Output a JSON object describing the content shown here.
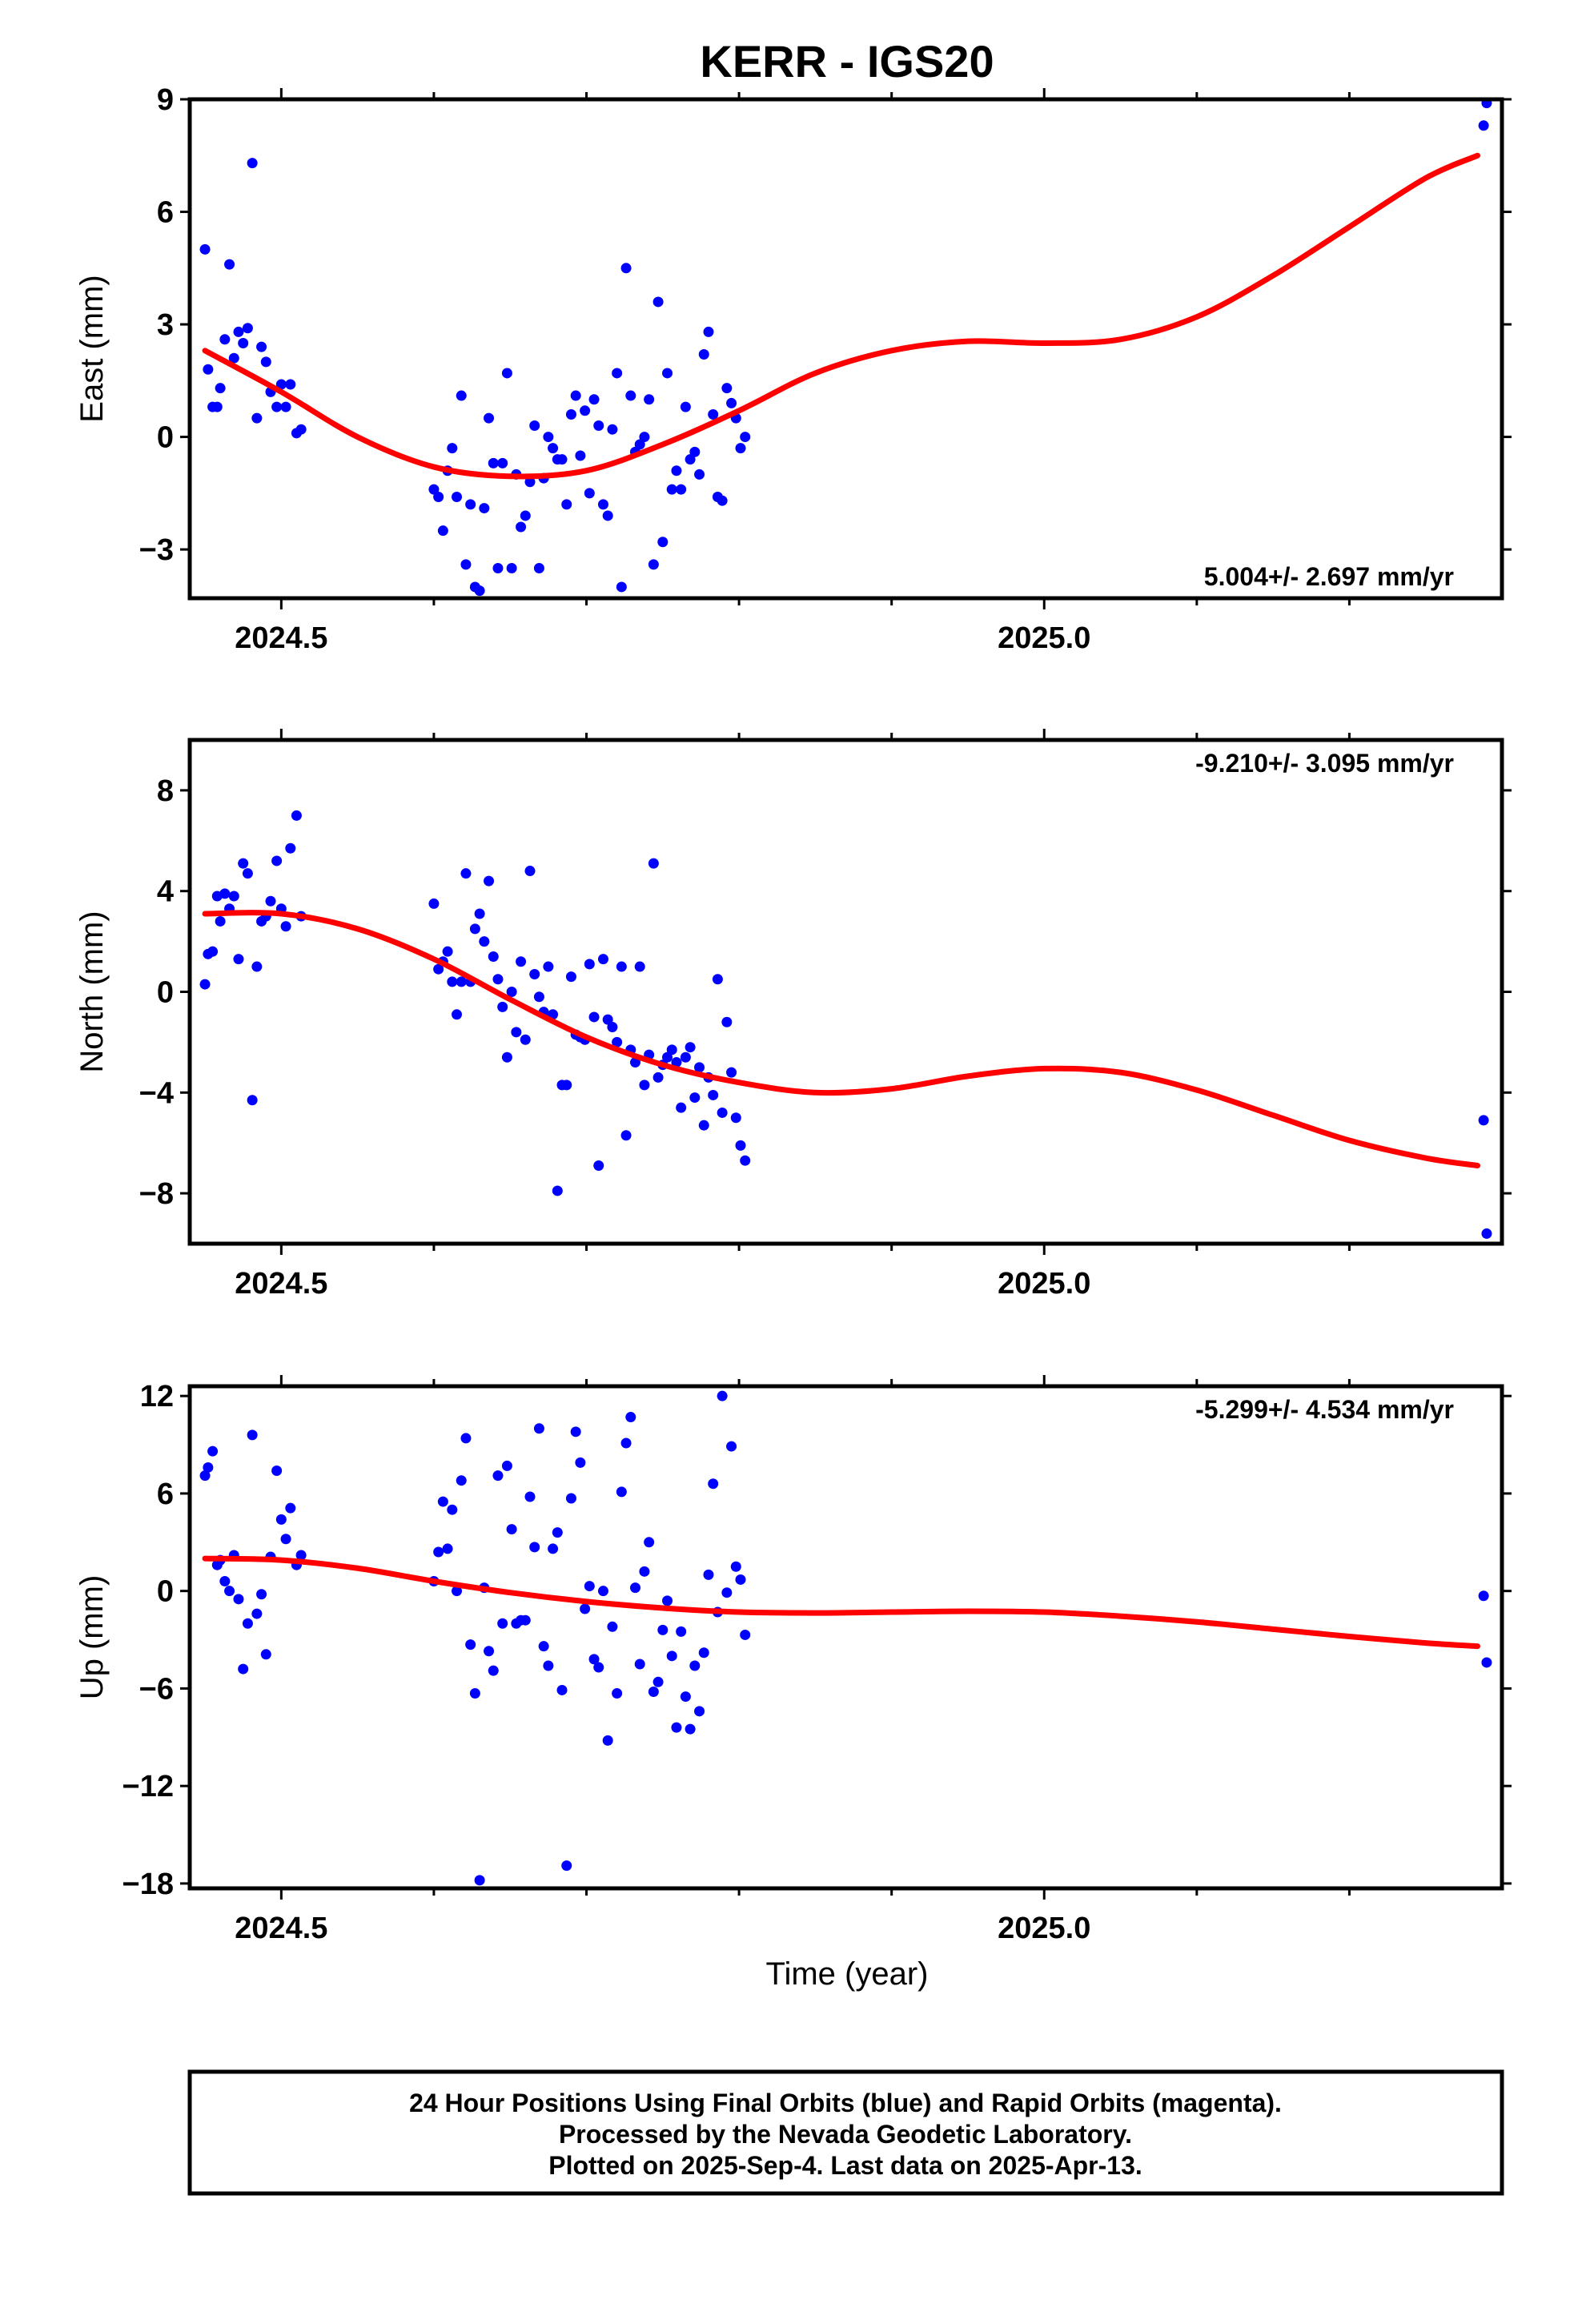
{
  "title": "KERR - IGS20",
  "xlabel": "Time (year)",
  "footer": {
    "line1": "24 Hour Positions Using Final Orbits (blue) and Rapid Orbits (magenta).",
    "line2": "Processed by the Nevada Geodetic Laboratory.",
    "line3": "Plotted on 2025-Sep-4. Last data on 2025-Apr-13."
  },
  "colors": {
    "points": "#0000ff",
    "fit": "#ff0000",
    "axes": "#000000"
  },
  "chart_data": [
    {
      "type": "scatter",
      "ylabel": "East (mm)",
      "rate_text": "5.004+/- 2.697 mm/yr",
      "rate_position": "bottom-right",
      "xlim": [
        2024.44,
        2025.3
      ],
      "ylim": [
        -4.3,
        9.0
      ],
      "xticks": [
        2024.5,
        2025.0
      ],
      "xticklabels": [
        "2024.5",
        "2025.0"
      ],
      "xminor": [
        2024.6,
        2024.7,
        2024.8,
        2024.9,
        2025.1,
        2025.2
      ],
      "yticks": [
        -3,
        0,
        3,
        6,
        9
      ],
      "yticklabels": [
        "−3",
        "0",
        "3",
        "6",
        "9"
      ],
      "points_x": [
        2024.45,
        2024.452,
        2024.455,
        2024.458,
        2024.46,
        2024.463,
        2024.466,
        2024.469,
        2024.472,
        2024.475,
        2024.478,
        2024.481,
        2024.484,
        2024.487,
        2024.49,
        2024.493,
        2024.497,
        2024.5,
        2024.503,
        2024.506,
        2024.51,
        2024.513,
        2024.6,
        2024.603,
        2024.606,
        2024.609,
        2024.612,
        2024.615,
        2024.618,
        2024.621,
        2024.624,
        2024.627,
        2024.63,
        2024.633,
        2024.636,
        2024.639,
        2024.642,
        2024.645,
        2024.648,
        2024.651,
        2024.654,
        2024.657,
        2024.66,
        2024.663,
        2024.666,
        2024.669,
        2024.672,
        2024.675,
        2024.678,
        2024.681,
        2024.684,
        2024.687,
        2024.69,
        2024.693,
        2024.696,
        2024.699,
        2024.702,
        2024.705,
        2024.708,
        2024.711,
        2024.714,
        2024.717,
        2024.72,
        2024.723,
        2024.726,
        2024.729,
        2024.732,
        2024.735,
        2024.738,
        2024.741,
        2024.744,
        2024.747,
        2024.75,
        2024.753,
        2024.756,
        2024.759,
        2024.762,
        2024.765,
        2024.768,
        2024.771,
        2024.774,
        2024.777,
        2024.78,
        2024.783,
        2024.786,
        2024.789,
        2024.792,
        2024.795,
        2024.798,
        2024.801,
        2024.804,
        2025.288,
        2025.29
      ],
      "points_y": [
        5.0,
        1.8,
        0.8,
        0.8,
        1.3,
        2.6,
        4.6,
        2.1,
        2.8,
        2.5,
        2.9,
        7.3,
        0.5,
        2.4,
        2.0,
        1.2,
        0.8,
        1.4,
        0.8,
        1.4,
        0.1,
        0.2,
        -1.4,
        -1.6,
        -2.5,
        -0.9,
        -0.3,
        -1.6,
        1.1,
        -3.4,
        -1.8,
        -4.0,
        -4.1,
        -1.9,
        0.5,
        -0.7,
        -3.5,
        -0.7,
        1.7,
        -3.5,
        -1.0,
        -2.4,
        -2.1,
        -1.2,
        0.3,
        -3.5,
        -1.1,
        0.0,
        -0.3,
        -0.6,
        -0.6,
        -1.8,
        0.6,
        1.1,
        -0.5,
        0.7,
        -1.5,
        1.0,
        0.3,
        -1.8,
        -2.1,
        0.2,
        1.7,
        -4.0,
        4.5,
        1.1,
        -0.4,
        -0.2,
        0.0,
        1.0,
        -3.4,
        3.6,
        -2.8,
        1.7,
        -1.4,
        -0.9,
        -1.4,
        0.8,
        -0.6,
        -0.4,
        -1.0,
        2.2,
        2.8,
        0.6,
        -1.6,
        -1.7,
        1.3,
        0.9,
        0.5,
        -0.3,
        0.0,
        8.3,
        8.9
      ],
      "fit_x": [
        2024.45,
        2024.5,
        2024.55,
        2024.6,
        2024.65,
        2024.7,
        2024.75,
        2024.8,
        2024.85,
        2024.9,
        2024.95,
        2025.0,
        2025.05,
        2025.1,
        2025.15,
        2025.2,
        2025.25,
        2025.284
      ],
      "fit_y": [
        2.3,
        1.2,
        0.0,
        -0.8,
        -1.05,
        -0.9,
        -0.2,
        0.7,
        1.7,
        2.3,
        2.55,
        2.5,
        2.6,
        3.2,
        4.3,
        5.6,
        6.9,
        7.5
      ]
    },
    {
      "type": "scatter",
      "ylabel": "North (mm)",
      "rate_text": "-9.210+/- 3.095 mm/yr",
      "rate_position": "top-right",
      "xlim": [
        2024.44,
        2025.3
      ],
      "ylim": [
        -10.0,
        10.0
      ],
      "xticks": [
        2024.5,
        2025.0
      ],
      "xticklabels": [
        "2024.5",
        "2025.0"
      ],
      "xminor": [
        2024.6,
        2024.7,
        2024.8,
        2024.9,
        2025.1,
        2025.2
      ],
      "yticks": [
        -8,
        -4,
        0,
        4,
        8
      ],
      "yticklabels": [
        "−8",
        "−4",
        "0",
        "4",
        "8"
      ],
      "points_x": [
        2024.45,
        2024.452,
        2024.455,
        2024.458,
        2024.46,
        2024.463,
        2024.466,
        2024.469,
        2024.472,
        2024.475,
        2024.478,
        2024.481,
        2024.484,
        2024.487,
        2024.49,
        2024.493,
        2024.497,
        2024.5,
        2024.503,
        2024.506,
        2024.51,
        2024.513,
        2024.6,
        2024.603,
        2024.606,
        2024.609,
        2024.612,
        2024.615,
        2024.618,
        2024.621,
        2024.624,
        2024.627,
        2024.63,
        2024.633,
        2024.636,
        2024.639,
        2024.642,
        2024.645,
        2024.648,
        2024.651,
        2024.654,
        2024.657,
        2024.66,
        2024.663,
        2024.666,
        2024.669,
        2024.672,
        2024.675,
        2024.678,
        2024.681,
        2024.684,
        2024.687,
        2024.69,
        2024.693,
        2024.696,
        2024.699,
        2024.702,
        2024.705,
        2024.708,
        2024.711,
        2024.714,
        2024.717,
        2024.72,
        2024.723,
        2024.726,
        2024.729,
        2024.732,
        2024.735,
        2024.738,
        2024.741,
        2024.744,
        2024.747,
        2024.75,
        2024.753,
        2024.756,
        2024.759,
        2024.762,
        2024.765,
        2024.768,
        2024.771,
        2024.774,
        2024.777,
        2024.78,
        2024.783,
        2024.786,
        2024.789,
        2024.792,
        2024.795,
        2024.798,
        2024.801,
        2024.804,
        2025.288,
        2025.29
      ],
      "points_y": [
        0.3,
        1.5,
        1.6,
        3.8,
        2.8,
        3.9,
        3.3,
        3.8,
        1.3,
        5.1,
        4.7,
        -4.3,
        1.0,
        2.8,
        3.0,
        3.6,
        5.2,
        3.3,
        2.6,
        5.7,
        7.0,
        3.0,
        3.5,
        0.9,
        1.2,
        1.6,
        0.4,
        -0.9,
        0.4,
        4.7,
        0.4,
        2.5,
        3.1,
        2.0,
        4.4,
        1.4,
        0.5,
        -0.6,
        -2.6,
        0.0,
        -1.6,
        1.2,
        -1.9,
        4.8,
        0.7,
        -0.2,
        -0.8,
        1.0,
        -0.9,
        -7.9,
        -3.7,
        -3.7,
        0.6,
        -1.7,
        -1.8,
        -1.9,
        1.1,
        -1.0,
        -6.9,
        1.3,
        -1.1,
        -1.4,
        -2.0,
        1.0,
        -5.7,
        -2.3,
        -2.8,
        1.0,
        -3.7,
        -2.5,
        5.1,
        -3.4,
        -2.9,
        -2.6,
        -2.3,
        -2.8,
        -4.6,
        -2.6,
        -2.2,
        -4.2,
        -3.0,
        -5.3,
        -3.4,
        -4.1,
        0.5,
        -4.8,
        -1.2,
        -3.2,
        -5.0,
        -6.1,
        -6.7,
        -5.1,
        -9.6
      ],
      "fit_x": [
        2024.45,
        2024.5,
        2024.55,
        2024.6,
        2024.65,
        2024.7,
        2024.75,
        2024.8,
        2024.85,
        2024.9,
        2024.95,
        2025.0,
        2025.05,
        2025.1,
        2025.15,
        2025.2,
        2025.25,
        2025.284
      ],
      "fit_y": [
        3.1,
        3.1,
        2.5,
        1.3,
        -0.3,
        -1.8,
        -2.9,
        -3.6,
        -4.0,
        -3.85,
        -3.35,
        -3.05,
        -3.2,
        -3.9,
        -4.9,
        -5.9,
        -6.6,
        -6.9
      ]
    },
    {
      "type": "scatter",
      "ylabel": "Up (mm)",
      "rate_text": "-5.299+/- 4.534 mm/yr",
      "rate_position": "top-right",
      "xlim": [
        2024.44,
        2025.3
      ],
      "ylim": [
        -18.3,
        12.6
      ],
      "xticks": [
        2024.5,
        2025.0
      ],
      "xticklabels": [
        "2024.5",
        "2025.0"
      ],
      "xminor": [
        2024.6,
        2024.7,
        2024.8,
        2024.9,
        2025.1,
        2025.2
      ],
      "yticks": [
        -18,
        -12,
        -6,
        0,
        6,
        12
      ],
      "yticklabels": [
        "−18",
        "−12",
        "−6",
        "0",
        "6",
        "12"
      ],
      "points_x": [
        2024.45,
        2024.452,
        2024.455,
        2024.458,
        2024.46,
        2024.463,
        2024.466,
        2024.469,
        2024.472,
        2024.475,
        2024.478,
        2024.481,
        2024.484,
        2024.487,
        2024.49,
        2024.493,
        2024.497,
        2024.5,
        2024.503,
        2024.506,
        2024.51,
        2024.513,
        2024.6,
        2024.603,
        2024.606,
        2024.609,
        2024.612,
        2024.615,
        2024.618,
        2024.621,
        2024.624,
        2024.627,
        2024.63,
        2024.633,
        2024.636,
        2024.639,
        2024.642,
        2024.645,
        2024.648,
        2024.651,
        2024.654,
        2024.657,
        2024.66,
        2024.663,
        2024.666,
        2024.669,
        2024.672,
        2024.675,
        2024.678,
        2024.681,
        2024.684,
        2024.687,
        2024.69,
        2024.693,
        2024.696,
        2024.699,
        2024.702,
        2024.705,
        2024.708,
        2024.711,
        2024.714,
        2024.717,
        2024.72,
        2024.723,
        2024.726,
        2024.729,
        2024.732,
        2024.735,
        2024.738,
        2024.741,
        2024.744,
        2024.747,
        2024.75,
        2024.753,
        2024.756,
        2024.759,
        2024.762,
        2024.765,
        2024.768,
        2024.771,
        2024.774,
        2024.777,
        2024.78,
        2024.783,
        2024.786,
        2024.789,
        2024.792,
        2024.795,
        2024.798,
        2024.801,
        2024.804,
        2025.288,
        2025.29
      ],
      "points_y": [
        7.1,
        7.6,
        8.6,
        1.6,
        1.9,
        0.6,
        0.0,
        2.2,
        -0.5,
        -4.8,
        -2.0,
        9.6,
        -1.4,
        -0.2,
        -3.9,
        2.1,
        7.4,
        4.4,
        3.2,
        5.1,
        1.6,
        2.2,
        0.6,
        2.4,
        5.5,
        2.6,
        5.0,
        0.0,
        6.8,
        9.4,
        -3.3,
        -6.3,
        -17.8,
        0.2,
        -3.7,
        -4.9,
        7.1,
        -2.0,
        7.7,
        3.8,
        -2.0,
        -1.8,
        -1.8,
        5.8,
        2.7,
        10.0,
        -3.4,
        -4.6,
        2.6,
        3.6,
        -6.1,
        -16.9,
        5.7,
        9.8,
        7.9,
        -1.1,
        0.3,
        -4.2,
        -4.7,
        0.0,
        -9.2,
        -2.2,
        -6.3,
        6.1,
        9.1,
        10.7,
        0.2,
        -4.5,
        1.2,
        3.0,
        -6.2,
        -5.6,
        -2.4,
        -0.6,
        -4.0,
        -8.4,
        -2.5,
        -6.5,
        -8.5,
        -4.6,
        -7.4,
        -3.8,
        1.0,
        6.6,
        -1.3,
        12.0,
        -0.1,
        8.9,
        1.5,
        0.7,
        -2.7,
        -0.3,
        -4.4
      ],
      "fit_x": [
        2024.45,
        2024.5,
        2024.55,
        2024.6,
        2024.65,
        2024.7,
        2024.75,
        2024.8,
        2024.85,
        2024.9,
        2024.95,
        2025.0,
        2025.05,
        2025.1,
        2025.15,
        2025.2,
        2025.25,
        2025.284
      ],
      "fit_y": [
        2.0,
        1.9,
        1.4,
        0.6,
        -0.1,
        -0.65,
        -1.05,
        -1.3,
        -1.35,
        -1.3,
        -1.25,
        -1.3,
        -1.55,
        -1.9,
        -2.35,
        -2.8,
        -3.2,
        -3.4
      ]
    }
  ]
}
